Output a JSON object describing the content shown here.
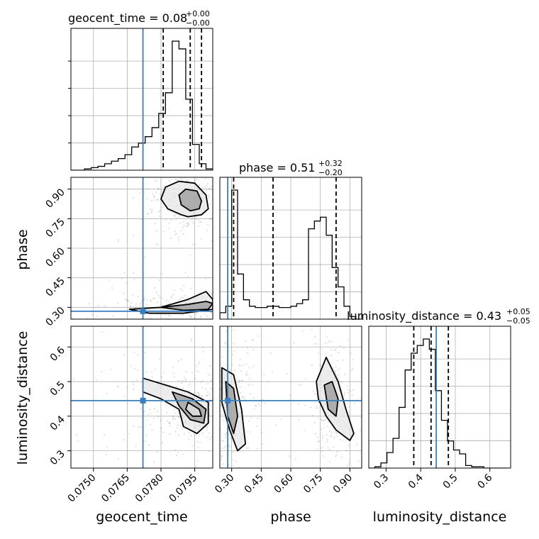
{
  "colors": {
    "truth": "#3a7ebf",
    "hist": "#000000",
    "grid": "#b0b0b0",
    "scatter": "#555555"
  },
  "titles": {
    "geocent_time": {
      "name": "geocent_time",
      "median": "0.08",
      "plus": "+0.00",
      "minus": "−0.00"
    },
    "phase": {
      "name": "phase",
      "median": "0.51",
      "plus": "+0.32",
      "minus": "−0.20"
    },
    "luminosity_distance": {
      "name": "luminosity_distance",
      "median": "0.43",
      "plus": "+0.05",
      "minus": "−0.05"
    }
  },
  "chart_data": [
    {
      "type": "corner",
      "parameters": [
        "geocent_time",
        "phase",
        "luminosity_distance"
      ],
      "truths": {
        "geocent_time": 0.0772,
        "phase": 0.28,
        "luminosity_distance": 0.445
      },
      "quantiles": {
        "geocent_time": [
          0.0781,
          0.0793,
          0.0798
        ],
        "phase": [
          0.31,
          0.51,
          0.83
        ],
        "luminosity_distance": [
          0.38,
          0.43,
          0.48
        ]
      },
      "axes": {
        "geocent_time": {
          "label": "geocent_time",
          "lim": [
            0.074,
            0.0803
          ],
          "ticks": [
            0.075,
            0.0765,
            0.078,
            0.0795
          ],
          "tick_labels": [
            "0.0750",
            "0.0765",
            "0.0780",
            "0.0795"
          ]
        },
        "phase": {
          "label": "phase",
          "lim": [
            0.24,
            0.96
          ],
          "ticks": [
            0.3,
            0.45,
            0.6,
            0.75,
            0.9
          ],
          "tick_labels": [
            "0.30",
            "0.45",
            "0.60",
            "0.75",
            "0.90"
          ]
        },
        "luminosity_distance": {
          "label": "luminosity_distance",
          "lim": [
            0.25,
            0.66
          ],
          "ticks": [
            0.3,
            0.4,
            0.5,
            0.6
          ],
          "tick_labels": [
            "0.3",
            "0.4",
            "0.5",
            "0.6"
          ]
        }
      },
      "histograms": {
        "geocent_time": {
          "edges_from": 0.074,
          "bin_width": 0.0003,
          "counts": [
            0,
            0,
            0.01,
            0.02,
            0.03,
            0.05,
            0.07,
            0.09,
            0.12,
            0.18,
            0.21,
            0.26,
            0.33,
            0.44,
            0.6,
            1.0,
            0.94,
            0.55,
            0.2,
            0.05,
            0.01
          ]
        },
        "phase": {
          "edges_from": 0.24,
          "bin_width": 0.03,
          "counts": [
            0.05,
            0.1,
            1.0,
            0.35,
            0.15,
            0.1,
            0.09,
            0.09,
            0.1,
            0.1,
            0.09,
            0.09,
            0.1,
            0.12,
            0.15,
            0.7,
            0.76,
            0.79,
            0.65,
            0.4,
            0.25,
            0.1,
            0.02,
            0.0
          ]
        },
        "luminosity_distance": {
          "edges_from": 0.25,
          "bin_width": 0.0175,
          "counts": [
            0.0,
            0.01,
            0.04,
            0.12,
            0.23,
            0.47,
            0.76,
            0.89,
            0.95,
            1.0,
            0.92,
            0.6,
            0.37,
            0.21,
            0.14,
            0.11,
            0.02,
            0.01,
            0.01,
            0.0,
            0.0,
            0.0,
            0.0
          ]
        }
      },
      "pairs": [
        {
          "x": "geocent_time",
          "y": "phase",
          "levels": [
            [
              [
                0.0792,
                0.76
              ],
              [
                0.0798,
                0.77
              ],
              [
                0.0801,
                0.8
              ],
              [
                0.08,
                0.87
              ],
              [
                0.0795,
                0.93
              ],
              [
                0.0788,
                0.94
              ],
              [
                0.0782,
                0.91
              ],
              [
                0.078,
                0.85
              ],
              [
                0.0783,
                0.8
              ],
              [
                0.0789,
                0.77
              ]
            ],
            [
              [
                0.0793,
                0.79
              ],
              [
                0.0797,
                0.8
              ],
              [
                0.0798,
                0.84
              ],
              [
                0.0796,
                0.89
              ],
              [
                0.0791,
                0.9
              ],
              [
                0.0788,
                0.87
              ],
              [
                0.0789,
                0.82
              ]
            ],
            [
              [
                0.0766,
                0.29
              ],
              [
                0.078,
                0.3
              ],
              [
                0.0792,
                0.34
              ],
              [
                0.08,
                0.38
              ],
              [
                0.0803,
                0.34
              ],
              [
                0.0803,
                0.29
              ],
              [
                0.079,
                0.27
              ],
              [
                0.0775,
                0.27
              ]
            ],
            [
              [
                0.078,
                0.3
              ],
              [
                0.0792,
                0.315
              ],
              [
                0.08,
                0.33
              ],
              [
                0.0803,
                0.32
              ],
              [
                0.0801,
                0.29
              ],
              [
                0.079,
                0.285
              ]
            ]
          ]
        },
        {
          "x": "geocent_time",
          "y": "luminosity_distance",
          "levels": [
            [
              [
                0.0772,
                0.51
              ],
              [
                0.0782,
                0.49
              ],
              [
                0.0792,
                0.47
              ],
              [
                0.0801,
                0.44
              ],
              [
                0.0801,
                0.38
              ],
              [
                0.0796,
                0.35
              ],
              [
                0.079,
                0.37
              ],
              [
                0.0788,
                0.42
              ],
              [
                0.078,
                0.45
              ],
              [
                0.0772,
                0.47
              ]
            ],
            [
              [
                0.0785,
                0.47
              ],
              [
                0.0794,
                0.45
              ],
              [
                0.08,
                0.42
              ],
              [
                0.0799,
                0.38
              ],
              [
                0.0793,
                0.39
              ],
              [
                0.0788,
                0.43
              ]
            ],
            [
              [
                0.0792,
                0.44
              ],
              [
                0.0797,
                0.42
              ],
              [
                0.0798,
                0.4
              ],
              [
                0.0794,
                0.4
              ],
              [
                0.0791,
                0.42
              ]
            ]
          ]
        },
        {
          "x": "phase",
          "y": "luminosity_distance",
          "levels": [
            [
              [
                0.25,
                0.54
              ],
              [
                0.31,
                0.52
              ],
              [
                0.35,
                0.42
              ],
              [
                0.37,
                0.32
              ],
              [
                0.33,
                0.3
              ],
              [
                0.29,
                0.36
              ],
              [
                0.25,
                0.44
              ]
            ],
            [
              [
                0.27,
                0.5
              ],
              [
                0.31,
                0.48
              ],
              [
                0.33,
                0.4
              ],
              [
                0.31,
                0.35
              ],
              [
                0.28,
                0.4
              ]
            ],
            [
              [
                0.73,
                0.5
              ],
              [
                0.78,
                0.57
              ],
              [
                0.84,
                0.5
              ],
              [
                0.88,
                0.42
              ],
              [
                0.92,
                0.35
              ],
              [
                0.9,
                0.33
              ],
              [
                0.83,
                0.36
              ],
              [
                0.78,
                0.4
              ],
              [
                0.74,
                0.45
              ]
            ],
            [
              [
                0.77,
                0.49
              ],
              [
                0.81,
                0.5
              ],
              [
                0.84,
                0.45
              ],
              [
                0.83,
                0.4
              ],
              [
                0.79,
                0.42
              ]
            ]
          ]
        }
      ]
    }
  ]
}
